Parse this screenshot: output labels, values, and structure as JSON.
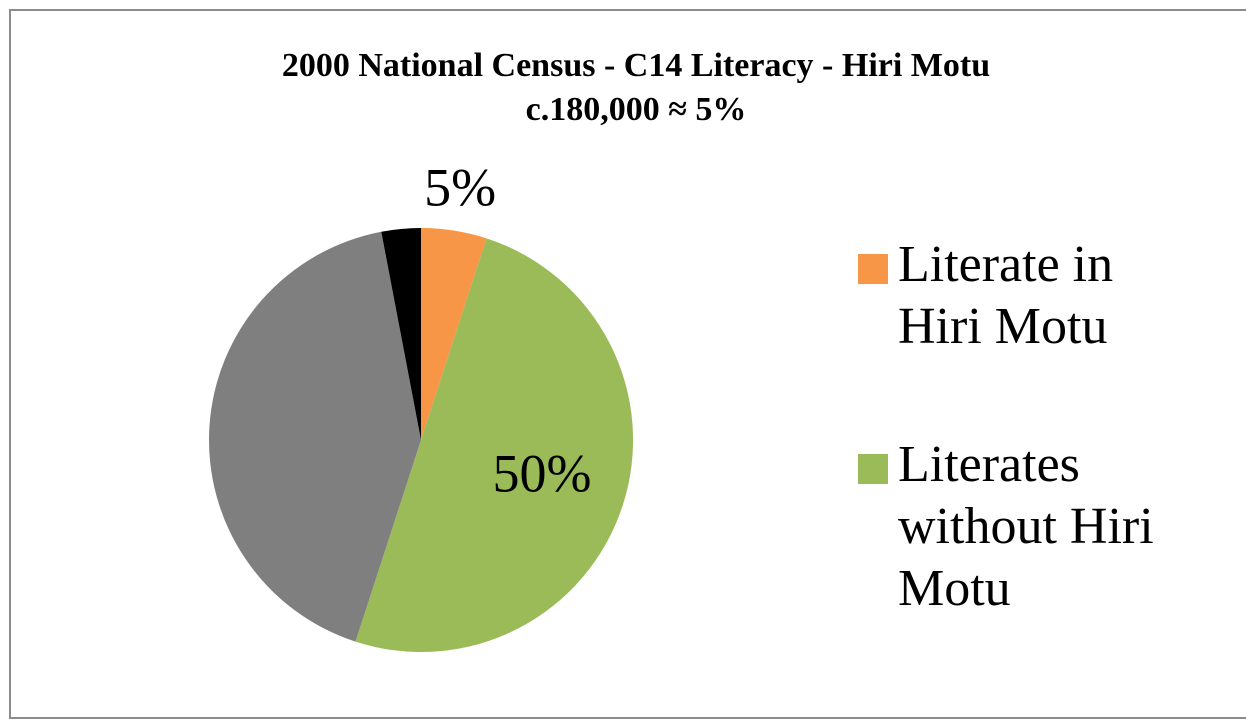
{
  "chart_data": {
    "type": "pie",
    "title": "2000 National Census - C14 Literacy - Hiri Motu",
    "subtitle": "c.180,000 ≈ 5%",
    "categories": [
      "Literate in Hiri Motu",
      "Literates without Hiri Motu",
      null,
      null
    ],
    "values": [
      5,
      50,
      42,
      3
    ],
    "value_labels": [
      "5%",
      "50%",
      null,
      null
    ],
    "colors": [
      "#f79646",
      "#9bbb59",
      "#7f7f7f",
      "#000000"
    ],
    "legend": "right"
  }
}
